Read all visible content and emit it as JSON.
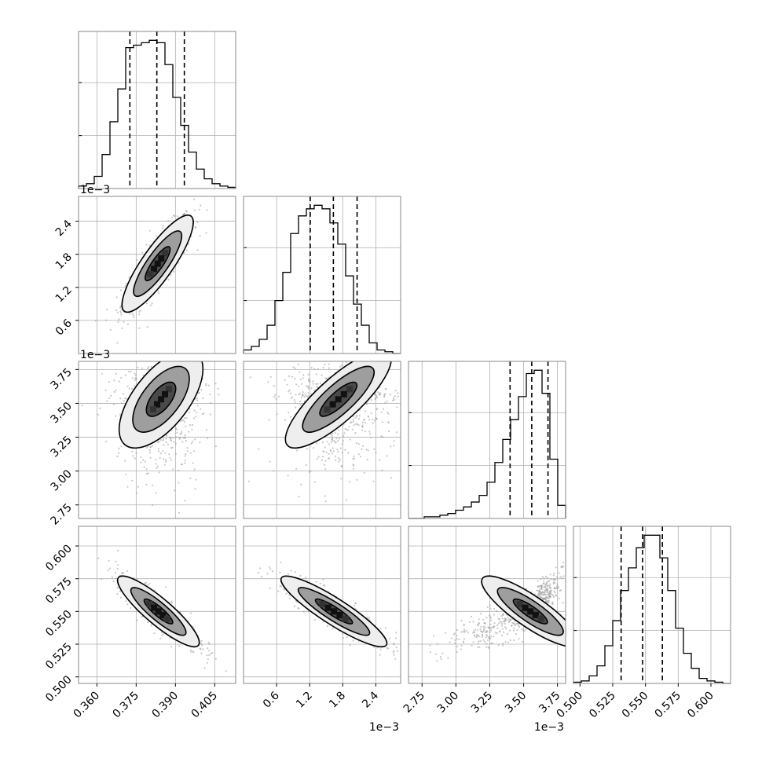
{
  "chart_data": {
    "type": "corner",
    "parameters": [
      {
        "range": [
          0.353,
          0.413
        ],
        "ticks": [
          0.36,
          0.375,
          0.39,
          0.405
        ],
        "tick_labels": [
          "0.360",
          "0.375",
          "0.390",
          "0.405"
        ],
        "offset_label": ""
      },
      {
        "range": [
          0.0,
          0.00285
        ],
        "ticks": [
          0.0006,
          0.0012,
          0.0018,
          0.0024
        ],
        "tick_labels": [
          "0.6",
          "1.2",
          "1.8",
          "2.4"
        ],
        "offset_label": "1e−3"
      },
      {
        "range": [
          0.00265,
          0.00381
        ],
        "ticks": [
          0.00275,
          0.003,
          0.00325,
          0.0035,
          0.00375
        ],
        "tick_labels": [
          "2.75",
          "3.00",
          "3.25",
          "3.50",
          "3.75"
        ],
        "offset_label": "1e−3"
      },
      {
        "range": [
          0.495,
          0.615
        ],
        "ticks": [
          0.5,
          0.525,
          0.55,
          0.575,
          0.6
        ],
        "tick_labels": [
          "0.500",
          "0.525",
          "0.550",
          "0.575",
          "0.600"
        ],
        "offset_label": ""
      }
    ],
    "diagonal_histograms": [
      {
        "quantiles": [
          0.3726,
          0.3829,
          0.3934
        ],
        "counts": [
          2,
          4,
          10,
          28,
          55,
          82,
          116,
          118,
          120,
          122,
          120,
          102,
          75,
          52,
          30,
          16,
          8,
          4,
          2,
          1
        ]
      },
      {
        "quantiles": [
          0.00121,
          0.00163,
          0.00206
        ],
        "counts": [
          2,
          4,
          8,
          16,
          30,
          46,
          68,
          78,
          82,
          84,
          82,
          74,
          62,
          44,
          28,
          16,
          6,
          2,
          1,
          0
        ]
      },
      {
        "quantiles": [
          0.0034,
          0.00356,
          0.00368
        ],
        "counts": [
          0,
          0,
          1,
          1,
          2,
          3,
          5,
          7,
          10,
          14,
          22,
          34,
          48,
          60,
          74,
          88,
          90,
          76,
          36,
          8
        ]
      },
      {
        "quantiles": [
          0.5314,
          0.5478,
          0.5629
        ],
        "counts": [
          1,
          2,
          6,
          14,
          30,
          50,
          74,
          92,
          108,
          118,
          118,
          100,
          74,
          44,
          24,
          12,
          4,
          2,
          1,
          0
        ]
      }
    ],
    "pairs": [
      {
        "x": 0,
        "y": 1,
        "mean": [
          0.3832,
          0.00163
        ],
        "std": [
          0.0068,
          0.00044
        ],
        "corr": 0.85
      },
      {
        "x": 0,
        "y": 2,
        "mean": [
          0.3845,
          0.00353
        ],
        "std": [
          0.008,
          0.00018
        ],
        "corr": 0.62
      },
      {
        "x": 1,
        "y": 2,
        "mean": [
          0.00172,
          0.00353
        ],
        "std": [
          0.00048,
          0.00018
        ],
        "corr": 0.82
      },
      {
        "x": 0,
        "y": 3,
        "mean": [
          0.3835,
          0.55
        ],
        "std": [
          0.0078,
          0.0135
        ],
        "corr": -0.88
      },
      {
        "x": 1,
        "y": 3,
        "mean": [
          0.00164,
          0.55
        ],
        "std": [
          0.00048,
          0.0135
        ],
        "corr": -0.9
      },
      {
        "x": 2,
        "y": 3,
        "mean": [
          0.00355,
          0.55
        ],
        "std": [
          0.00018,
          0.0135
        ],
        "corr": -0.85
      }
    ]
  },
  "style": {
    "line_color": "#000000",
    "grid_color": "#b0b0b0",
    "point_color": "#9a9a9a",
    "fill_light": "#eeeeee",
    "fill_mid": "#9e9e9e",
    "fill_dark": "#4a4a4a"
  }
}
